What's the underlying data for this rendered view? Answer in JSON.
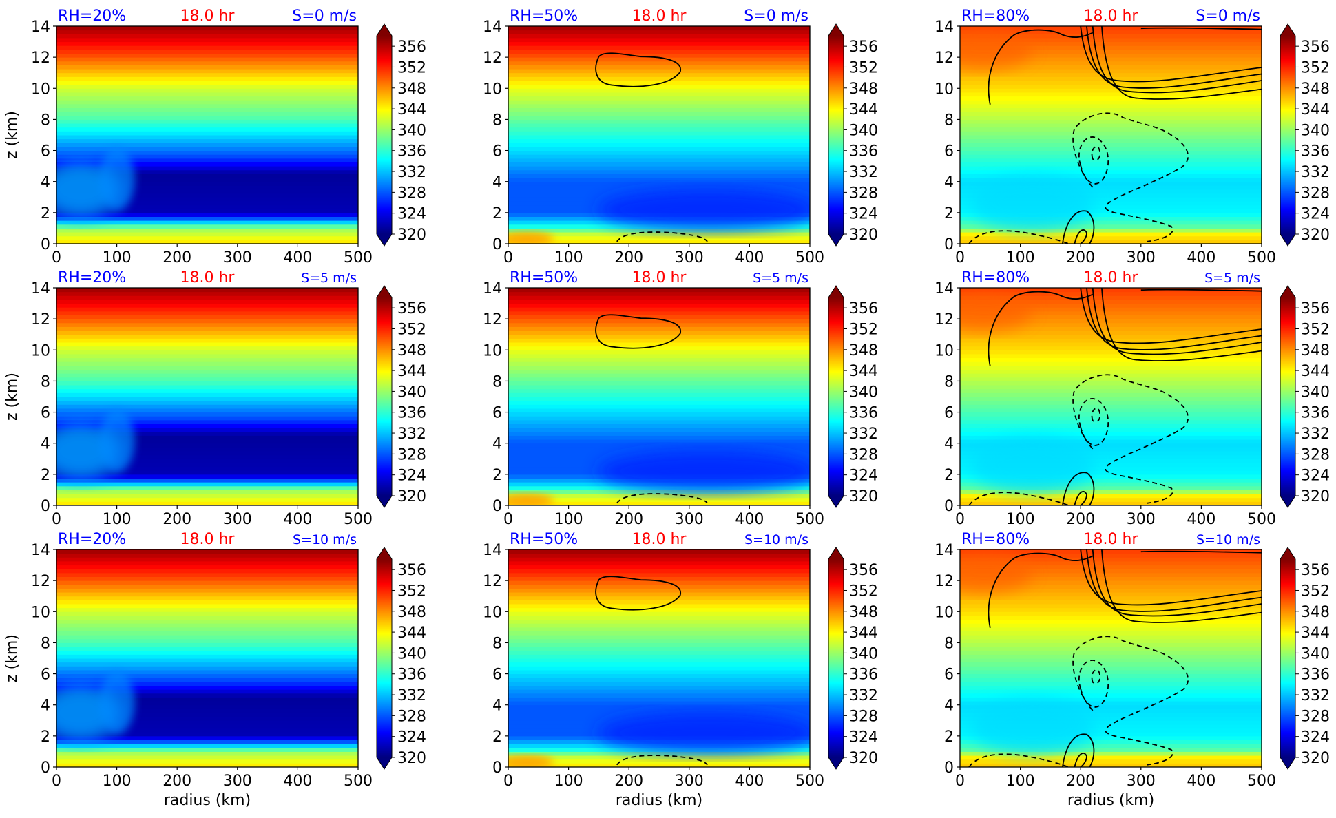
{
  "figure": {
    "xlabel": "radius (km)",
    "ylabel": "z (km)",
    "time_label": "18.0 hr",
    "colors": {
      "rh_label": "#0000ff",
      "time_label": "#ff0000",
      "shear_label": "#0000ff",
      "contour": "#000000"
    }
  },
  "chart_data": [
    {
      "type": "heatmap",
      "rh_label": "RH=20%",
      "time_label": "18.0 hr",
      "shear_label": "S=0 m/s",
      "rh": 20,
      "shear": 0,
      "x_ticks": [
        "0",
        "100",
        "200",
        "300",
        "400",
        "500"
      ],
      "y_ticks": [
        "0",
        "2",
        "4",
        "6",
        "8",
        "10",
        "12",
        "14"
      ],
      "xlim": [
        0,
        500
      ],
      "ylim": [
        0,
        14
      ],
      "colorbar_ticks": [
        "320",
        "324",
        "328",
        "332",
        "336",
        "340",
        "344",
        "348",
        "352",
        "356"
      ],
      "colorbar_range": [
        320,
        358
      ],
      "colormap": "jet"
    },
    {
      "type": "heatmap",
      "rh_label": "RH=50%",
      "time_label": "18.0 hr",
      "shear_label": "S=0 m/s",
      "rh": 50,
      "shear": 0,
      "x_ticks": [
        "0",
        "100",
        "200",
        "300",
        "400",
        "500"
      ],
      "y_ticks": [
        "0",
        "2",
        "4",
        "6",
        "8",
        "10",
        "12",
        "14"
      ],
      "xlim": [
        0,
        500
      ],
      "ylim": [
        0,
        14
      ],
      "colorbar_ticks": [
        "320",
        "324",
        "328",
        "332",
        "336",
        "340",
        "344",
        "348",
        "352",
        "356"
      ],
      "colorbar_range": [
        320,
        358
      ],
      "colormap": "jet"
    },
    {
      "type": "heatmap",
      "rh_label": "RH=80%",
      "time_label": "18.0 hr",
      "shear_label": "S=0 m/s",
      "rh": 80,
      "shear": 0,
      "x_ticks": [
        "0",
        "100",
        "200",
        "300",
        "400",
        "500"
      ],
      "y_ticks": [
        "0",
        "2",
        "4",
        "6",
        "8",
        "10",
        "12",
        "14"
      ],
      "xlim": [
        0,
        500
      ],
      "ylim": [
        0,
        14
      ],
      "colorbar_ticks": [
        "320",
        "324",
        "328",
        "332",
        "336",
        "340",
        "344",
        "348",
        "352",
        "356"
      ],
      "colorbar_range": [
        320,
        358
      ],
      "colormap": "jet"
    },
    {
      "type": "heatmap",
      "rh_label": "RH=20%",
      "time_label": "18.0 hr",
      "shear_label": "S=5 m/s",
      "rh": 20,
      "shear": 5,
      "x_ticks": [
        "0",
        "100",
        "200",
        "300",
        "400",
        "500"
      ],
      "y_ticks": [
        "0",
        "2",
        "4",
        "6",
        "8",
        "10",
        "12",
        "14"
      ],
      "xlim": [
        0,
        500
      ],
      "ylim": [
        0,
        14
      ],
      "colorbar_ticks": [
        "320",
        "324",
        "328",
        "332",
        "336",
        "340",
        "344",
        "348",
        "352",
        "356"
      ],
      "colorbar_range": [
        320,
        358
      ],
      "colormap": "jet"
    },
    {
      "type": "heatmap",
      "rh_label": "RH=50%",
      "time_label": "18.0 hr",
      "shear_label": "S=5 m/s",
      "rh": 50,
      "shear": 5,
      "x_ticks": [
        "0",
        "100",
        "200",
        "300",
        "400",
        "500"
      ],
      "y_ticks": [
        "0",
        "2",
        "4",
        "6",
        "8",
        "10",
        "12",
        "14"
      ],
      "xlim": [
        0,
        500
      ],
      "ylim": [
        0,
        14
      ],
      "colorbar_ticks": [
        "320",
        "324",
        "328",
        "332",
        "336",
        "340",
        "344",
        "348",
        "352",
        "356"
      ],
      "colorbar_range": [
        320,
        358
      ],
      "colormap": "jet"
    },
    {
      "type": "heatmap",
      "rh_label": "RH=80%",
      "time_label": "18.0 hr",
      "shear_label": "S=5 m/s",
      "rh": 80,
      "shear": 5,
      "x_ticks": [
        "0",
        "100",
        "200",
        "300",
        "400",
        "500"
      ],
      "y_ticks": [
        "0",
        "2",
        "4",
        "6",
        "8",
        "10",
        "12",
        "14"
      ],
      "xlim": [
        0,
        500
      ],
      "ylim": [
        0,
        14
      ],
      "colorbar_ticks": [
        "320",
        "324",
        "328",
        "332",
        "336",
        "340",
        "344",
        "348",
        "352",
        "356"
      ],
      "colorbar_range": [
        320,
        358
      ],
      "colormap": "jet"
    },
    {
      "type": "heatmap",
      "rh_label": "RH=20%",
      "time_label": "18.0 hr",
      "shear_label": "S=10 m/s",
      "rh": 20,
      "shear": 10,
      "x_ticks": [
        "0",
        "100",
        "200",
        "300",
        "400",
        "500"
      ],
      "y_ticks": [
        "0",
        "2",
        "4",
        "6",
        "8",
        "10",
        "12",
        "14"
      ],
      "xlim": [
        0,
        500
      ],
      "ylim": [
        0,
        14
      ],
      "colorbar_ticks": [
        "320",
        "324",
        "328",
        "332",
        "336",
        "340",
        "344",
        "348",
        "352",
        "356"
      ],
      "colorbar_range": [
        320,
        358
      ],
      "colormap": "jet"
    },
    {
      "type": "heatmap",
      "rh_label": "RH=50%",
      "time_label": "18.0 hr",
      "shear_label": "S=10 m/s",
      "rh": 50,
      "shear": 10,
      "x_ticks": [
        "0",
        "100",
        "200",
        "300",
        "400",
        "500"
      ],
      "y_ticks": [
        "0",
        "2",
        "4",
        "6",
        "8",
        "10",
        "12",
        "14"
      ],
      "xlim": [
        0,
        500
      ],
      "ylim": [
        0,
        14
      ],
      "colorbar_ticks": [
        "320",
        "324",
        "328",
        "332",
        "336",
        "340",
        "344",
        "348",
        "352",
        "356"
      ],
      "colorbar_range": [
        320,
        358
      ],
      "colormap": "jet"
    },
    {
      "type": "heatmap",
      "rh_label": "RH=80%",
      "time_label": "18.0 hr",
      "shear_label": "S=10 m/s",
      "rh": 80,
      "shear": 10,
      "x_ticks": [
        "0",
        "100",
        "200",
        "300",
        "400",
        "500"
      ],
      "y_ticks": [
        "0",
        "2",
        "4",
        "6",
        "8",
        "10",
        "12",
        "14"
      ],
      "xlim": [
        0,
        500
      ],
      "ylim": [
        0,
        14
      ],
      "colorbar_ticks": [
        "320",
        "324",
        "328",
        "332",
        "336",
        "340",
        "344",
        "348",
        "352",
        "356"
      ],
      "colorbar_range": [
        320,
        358
      ],
      "colormap": "jet"
    }
  ]
}
